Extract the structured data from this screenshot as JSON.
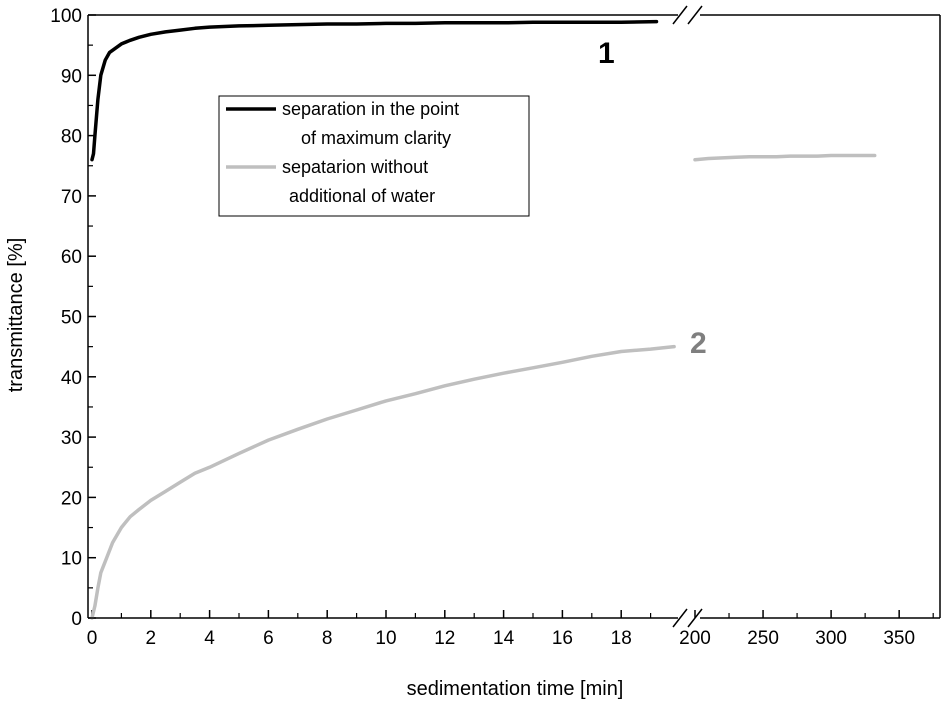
{
  "chart_data": {
    "type": "line",
    "xlabel": "sedimentation time [min]",
    "ylabel": "transmittance [%]",
    "ylim": [
      0,
      100
    ],
    "y_ticks": [
      "0",
      "10",
      "20",
      "30",
      "40",
      "50",
      "60",
      "70",
      "80",
      "90",
      "100"
    ],
    "x_axis_break": true,
    "x_segments": [
      {
        "xlim": [
          0,
          20
        ],
        "ticks": [
          "0",
          "2",
          "4",
          "6",
          "8",
          "10",
          "12",
          "14",
          "16",
          "18"
        ]
      },
      {
        "xlim": [
          200,
          380
        ],
        "ticks": [
          "200",
          "250",
          "300",
          "350"
        ]
      }
    ],
    "grid": false,
    "legend_position": "upper-center",
    "annotations": [
      {
        "text": "1",
        "color": "#000000"
      },
      {
        "text": "2",
        "color": "#7f7f7f"
      }
    ],
    "series": [
      {
        "name": "separation in the point of maximum clarity",
        "color": "#000000",
        "points": [
          [
            0.0,
            76.0
          ],
          [
            0.05,
            77.0
          ],
          [
            0.1,
            80.0
          ],
          [
            0.2,
            86.0
          ],
          [
            0.3,
            90.0
          ],
          [
            0.45,
            92.5
          ],
          [
            0.6,
            93.8
          ],
          [
            0.8,
            94.5
          ],
          [
            1.0,
            95.2
          ],
          [
            1.3,
            95.8
          ],
          [
            1.6,
            96.3
          ],
          [
            2.0,
            96.8
          ],
          [
            2.5,
            97.2
          ],
          [
            3.0,
            97.5
          ],
          [
            3.5,
            97.8
          ],
          [
            4.0,
            98.0
          ],
          [
            5.0,
            98.2
          ],
          [
            6.0,
            98.3
          ],
          [
            7.0,
            98.4
          ],
          [
            8.0,
            98.5
          ],
          [
            9.0,
            98.5
          ],
          [
            10.0,
            98.6
          ],
          [
            11.0,
            98.6
          ],
          [
            12.0,
            98.7
          ],
          [
            13.0,
            98.7
          ],
          [
            14.0,
            98.7
          ],
          [
            15.0,
            98.8
          ],
          [
            16.0,
            98.8
          ],
          [
            17.0,
            98.8
          ],
          [
            18.0,
            98.8
          ],
          [
            19.2,
            98.9
          ]
        ]
      },
      {
        "name": "sepatarion without additional of water",
        "color": "#bfbfbf",
        "points": [
          [
            0.0,
            0.0
          ],
          [
            0.1,
            2.0
          ],
          [
            0.2,
            5.0
          ],
          [
            0.3,
            7.5
          ],
          [
            0.5,
            10.0
          ],
          [
            0.7,
            12.5
          ],
          [
            1.0,
            15.0
          ],
          [
            1.3,
            16.8
          ],
          [
            1.6,
            18.0
          ],
          [
            2.0,
            19.5
          ],
          [
            2.5,
            21.0
          ],
          [
            3.0,
            22.5
          ],
          [
            3.5,
            24.0
          ],
          [
            4.0,
            25.0
          ],
          [
            5.0,
            27.3
          ],
          [
            6.0,
            29.5
          ],
          [
            7.0,
            31.3
          ],
          [
            8.0,
            33.0
          ],
          [
            9.0,
            34.5
          ],
          [
            10.0,
            36.0
          ],
          [
            11.0,
            37.2
          ],
          [
            12.0,
            38.5
          ],
          [
            13.0,
            39.6
          ],
          [
            14.0,
            40.6
          ],
          [
            15.0,
            41.5
          ],
          [
            16.0,
            42.4
          ],
          [
            17.0,
            43.4
          ],
          [
            18.0,
            44.2
          ],
          [
            19.0,
            44.6
          ],
          [
            19.8,
            45.0
          ],
          [
            200,
            76.0
          ],
          [
            210,
            76.2
          ],
          [
            220,
            76.3
          ],
          [
            230,
            76.4
          ],
          [
            240,
            76.5
          ],
          [
            250,
            76.5
          ],
          [
            260,
            76.5
          ],
          [
            270,
            76.6
          ],
          [
            280,
            76.6
          ],
          [
            290,
            76.6
          ],
          [
            300,
            76.7
          ],
          [
            310,
            76.7
          ],
          [
            320,
            76.7
          ],
          [
            332,
            76.7
          ]
        ]
      }
    ]
  }
}
